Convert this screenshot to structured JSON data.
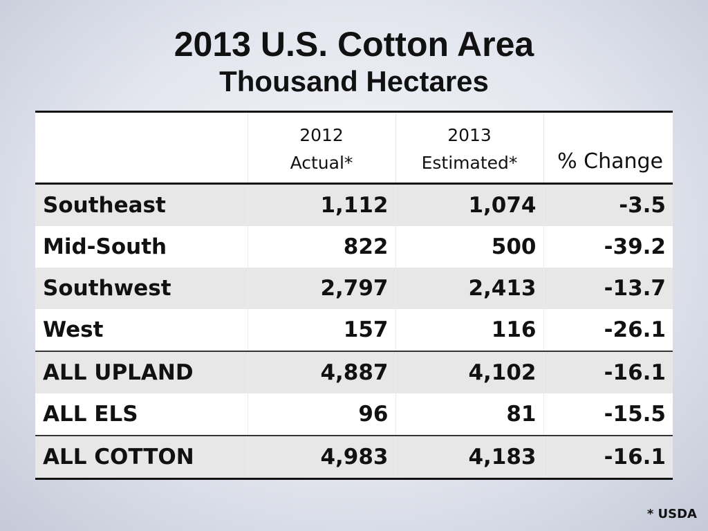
{
  "title": "2013 U.S. Cotton Area",
  "subtitle": "Thousand Hectares",
  "table": {
    "headers": [
      {
        "line1": "",
        "line2": ""
      },
      {
        "line1": "2012",
        "line2": "Actual*"
      },
      {
        "line1": "2013",
        "line2": "Estimated*"
      },
      {
        "line1": "",
        "line2": "% Change"
      }
    ],
    "rows": [
      {
        "region": "Southeast",
        "actual_2012": "1,112",
        "estimated_2013": "1,074",
        "pct_change": "-3.5"
      },
      {
        "region": "Mid-South",
        "actual_2012": "822",
        "estimated_2013": "500",
        "pct_change": "-39.2"
      },
      {
        "region": "Southwest",
        "actual_2012": "2,797",
        "estimated_2013": "2,413",
        "pct_change": "-13.7"
      },
      {
        "region": "West",
        "actual_2012": "157",
        "estimated_2013": "116",
        "pct_change": "-26.1"
      },
      {
        "region": "ALL UPLAND",
        "actual_2012": "4,887",
        "estimated_2013": "4,102",
        "pct_change": "-16.1"
      },
      {
        "region": "ALL ELS",
        "actual_2012": "96",
        "estimated_2013": "81",
        "pct_change": "-15.5"
      },
      {
        "region": "ALL COTTON",
        "actual_2012": "4,983",
        "estimated_2013": "4,183",
        "pct_change": "-16.1"
      }
    ]
  },
  "footnote": "* USDA"
}
